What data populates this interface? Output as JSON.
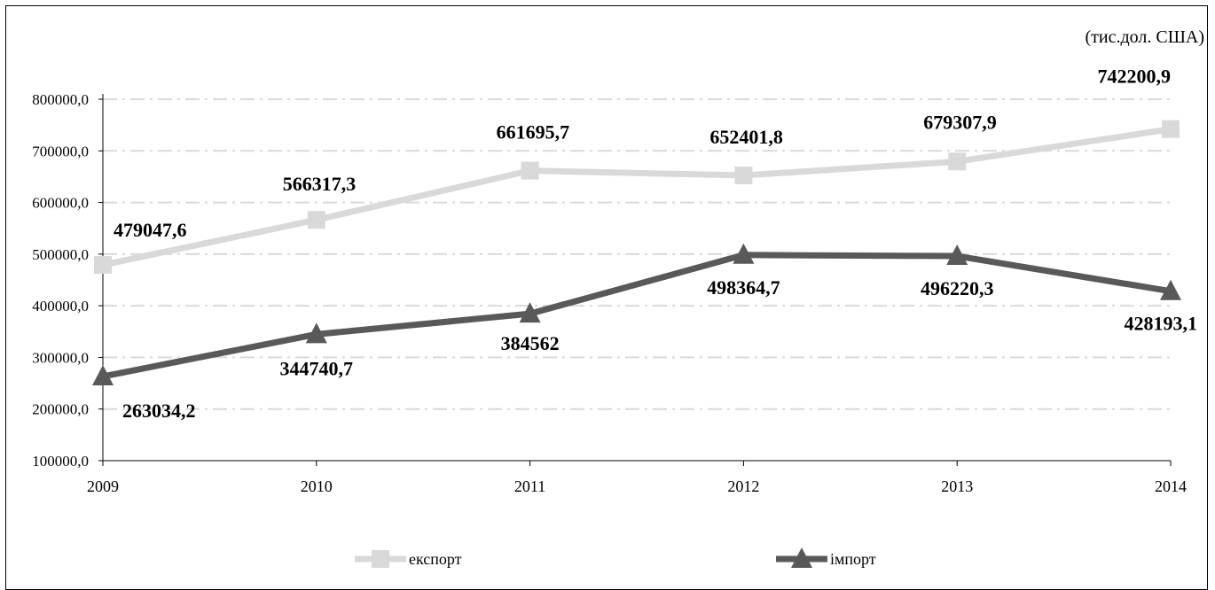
{
  "chart_data": {
    "type": "line",
    "unit_note": "(тис.дол. США)",
    "categories": [
      "2009",
      "2010",
      "2011",
      "2012",
      "2013",
      "2014"
    ],
    "ylim": [
      100000,
      800000
    ],
    "yticks": [
      100000,
      200000,
      300000,
      400000,
      500000,
      600000,
      700000,
      800000
    ],
    "ytick_labels": [
      "100000,0",
      "200000,0",
      "300000,0",
      "400000,0",
      "500000,0",
      "600000,0",
      "700000,0",
      "800000,0"
    ],
    "grid": "horizontal dash-dot",
    "legend_position": "bottom",
    "series": [
      {
        "name": "експорт",
        "color": "#d9d9d9",
        "marker": "square",
        "values": [
          479047.6,
          566317.3,
          661695.7,
          652401.8,
          679307.9,
          742200.9
        ],
        "labels": [
          "479047,6",
          "566317,3",
          "661695,7",
          "652401,8",
          "679307,9",
          "742200,9"
        ]
      },
      {
        "name": "імпорт",
        "color": "#595959",
        "marker": "triangle",
        "values": [
          263034.2,
          344740.7,
          384562,
          498364.7,
          496220.3,
          428193.1
        ],
        "labels": [
          "263034,2",
          "344740,7",
          "384562",
          "498364,7",
          "496220,3",
          "428193,1"
        ]
      }
    ]
  }
}
